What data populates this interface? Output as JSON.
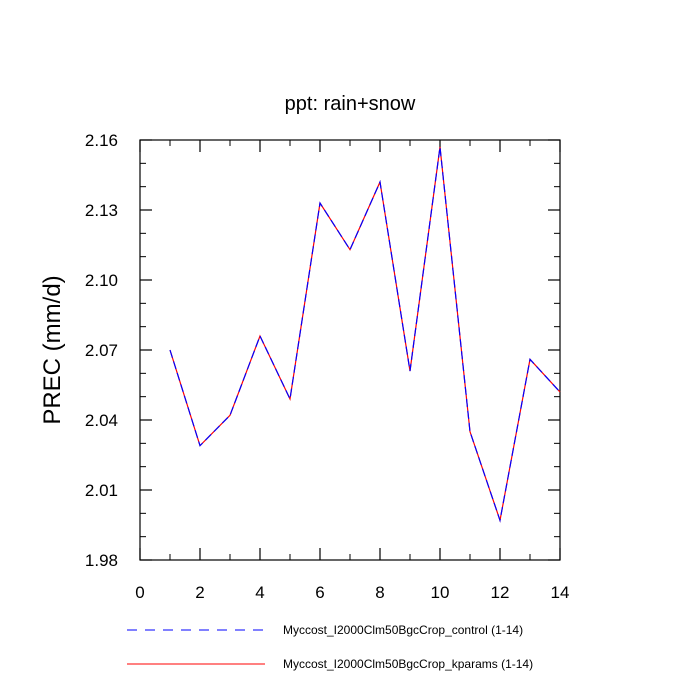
{
  "chart_data": {
    "type": "line",
    "title": "ppt: rain+snow",
    "xlabel": "",
    "ylabel": "PREC  (mm/d)",
    "xlim": [
      0,
      14
    ],
    "ylim": [
      1.98,
      2.16
    ],
    "xticks": [
      0,
      2,
      4,
      6,
      8,
      10,
      12,
      14
    ],
    "xtick_labels": [
      "0",
      "2",
      "4",
      "6",
      "8",
      "10",
      "12",
      "14"
    ],
    "yticks": [
      1.98,
      2.01,
      2.04,
      2.07,
      2.1,
      2.13,
      2.16
    ],
    "ytick_labels": [
      "1.98",
      "2.01",
      "2.04",
      "2.07",
      "2.10",
      "2.13",
      "2.16"
    ],
    "grid": false,
    "legend_position": "bottom",
    "x": [
      1,
      2,
      3,
      4,
      5,
      6,
      7,
      8,
      9,
      10,
      11,
      12,
      13,
      14
    ],
    "series": [
      {
        "name": "Myccost_I2000Clm50BgcCrop_control (1-14)",
        "color": "#0000ff",
        "style": "dashed",
        "values": [
          2.07,
          2.029,
          2.042,
          2.076,
          2.049,
          2.133,
          2.113,
          2.142,
          2.061,
          2.157,
          2.035,
          1.997,
          2.066,
          2.052
        ]
      },
      {
        "name": "Myccost_I2000Clm50BgcCrop_kparams (1-14)",
        "color": "#ff0000",
        "style": "solid",
        "values": [
          2.07,
          2.029,
          2.042,
          2.076,
          2.049,
          2.133,
          2.113,
          2.142,
          2.061,
          2.157,
          2.035,
          1.997,
          2.066,
          2.052
        ]
      }
    ]
  }
}
